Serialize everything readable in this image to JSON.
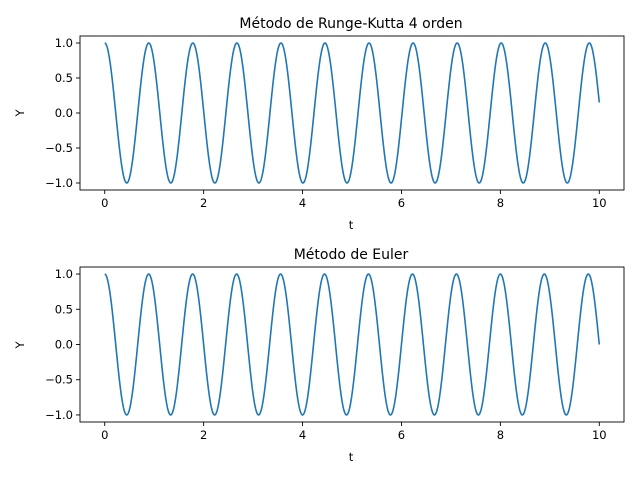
{
  "chart_data": [
    {
      "type": "line",
      "title": "Método de Runge-Kutta 4 orden",
      "xlabel": "t",
      "ylabel": "Y",
      "xlim": [
        -0.5,
        10.5
      ],
      "ylim": [
        -1.1,
        1.1
      ],
      "xticks": [
        0,
        2,
        4,
        6,
        8,
        10
      ],
      "xtick_labels": [
        "0",
        "2",
        "4",
        "6",
        "8",
        "10"
      ],
      "yticks": [
        -1.0,
        -0.5,
        0.0,
        0.5,
        1.0
      ],
      "ytick_labels": [
        "−1.0",
        "−0.5",
        "0.0",
        "0.5",
        "1.0"
      ],
      "grid": false,
      "legend": "none",
      "line_color": "#1f77b4",
      "series": [
        {
          "function": "cos(2*pi*f*t)",
          "frequency": 1.1226,
          "t_start": 0,
          "t_end": 10,
          "sample_points": 1001
        }
      ]
    },
    {
      "type": "line",
      "title": "Método de Euler",
      "xlabel": "t",
      "ylabel": "Y",
      "xlim": [
        -0.5,
        10.5
      ],
      "ylim": [
        -1.1,
        1.1
      ],
      "xticks": [
        0,
        2,
        4,
        6,
        8,
        10
      ],
      "xtick_labels": [
        "0",
        "2",
        "4",
        "6",
        "8",
        "10"
      ],
      "yticks": [
        -1.0,
        -0.5,
        0.0,
        0.5,
        1.0
      ],
      "ytick_labels": [
        "−1.0",
        "−0.5",
        "0.0",
        "0.5",
        "1.0"
      ],
      "grid": false,
      "legend": "none",
      "line_color": "#1f77b4",
      "series": [
        {
          "function": "cos(2*pi*f*t)",
          "frequency": 1.125,
          "t_start": 0,
          "t_end": 10,
          "sample_points": 1001
        }
      ]
    }
  ]
}
